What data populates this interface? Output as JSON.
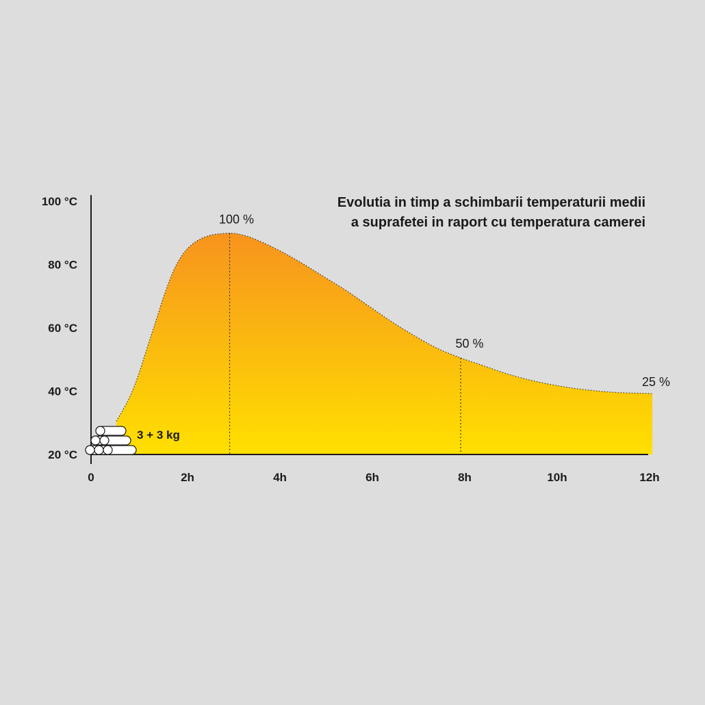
{
  "chart_data": {
    "type": "area",
    "title_lines": [
      "Evolutia in timp a schimbarii temperaturii medii",
      "a suprafetei in raport cu temperatura camerei"
    ],
    "xlabel": "",
    "ylabel": "",
    "x_ticks": [
      {
        "value": 0,
        "label": "0"
      },
      {
        "value": 2,
        "label": "2h"
      },
      {
        "value": 4,
        "label": "4h"
      },
      {
        "value": 6,
        "label": "6h"
      },
      {
        "value": 8,
        "label": "8h"
      },
      {
        "value": 10,
        "label": "10h"
      },
      {
        "value": 12,
        "label": "12h"
      }
    ],
    "y_ticks": [
      {
        "value": 20,
        "label": "20 °C"
      },
      {
        "value": 40,
        "label": "40 °C"
      },
      {
        "value": 60,
        "label": "60 °C"
      },
      {
        "value": 80,
        "label": "80 °C"
      },
      {
        "value": 100,
        "label": "100 °C"
      }
    ],
    "xlim": [
      0,
      12.2
    ],
    "ylim": [
      20,
      100
    ],
    "grid": false,
    "fill_gradient": [
      "#f7931e",
      "#ffe000"
    ],
    "series": [
      {
        "x": [
          0.55,
          0.8,
          1.0,
          1.2,
          1.4,
          1.6,
          1.8,
          2.0,
          2.2,
          2.4,
          2.6,
          2.8,
          3.0,
          3.2,
          3.5,
          4.0,
          4.5,
          5.0,
          5.5,
          6.0,
          6.5,
          7.0,
          7.5,
          8.0,
          8.5,
          9.0,
          9.5,
          10.0,
          10.5,
          11.0,
          11.5,
          12.0,
          12.15
        ],
        "y": [
          30.5,
          37,
          44,
          53,
          62,
          71,
          78.5,
          83.5,
          86.5,
          88.3,
          89.3,
          89.7,
          89.9,
          89.6,
          88.3,
          85,
          81,
          76.5,
          72,
          67,
          62,
          57.5,
          53.5,
          50.5,
          48,
          45.5,
          43.5,
          42,
          40.8,
          40,
          39.5,
          39.3,
          39.2
        ]
      }
    ],
    "markers": [
      {
        "x": 3.0,
        "y": 89.9,
        "label": "100 %"
      },
      {
        "x": 8.0,
        "y": 50.5,
        "label": "50 %"
      },
      {
        "x": 12.15,
        "y": 39.2,
        "label": "25 %"
      }
    ],
    "annotation": "3 + 3 kg",
    "wood_icon": "stacked-logs-icon"
  }
}
